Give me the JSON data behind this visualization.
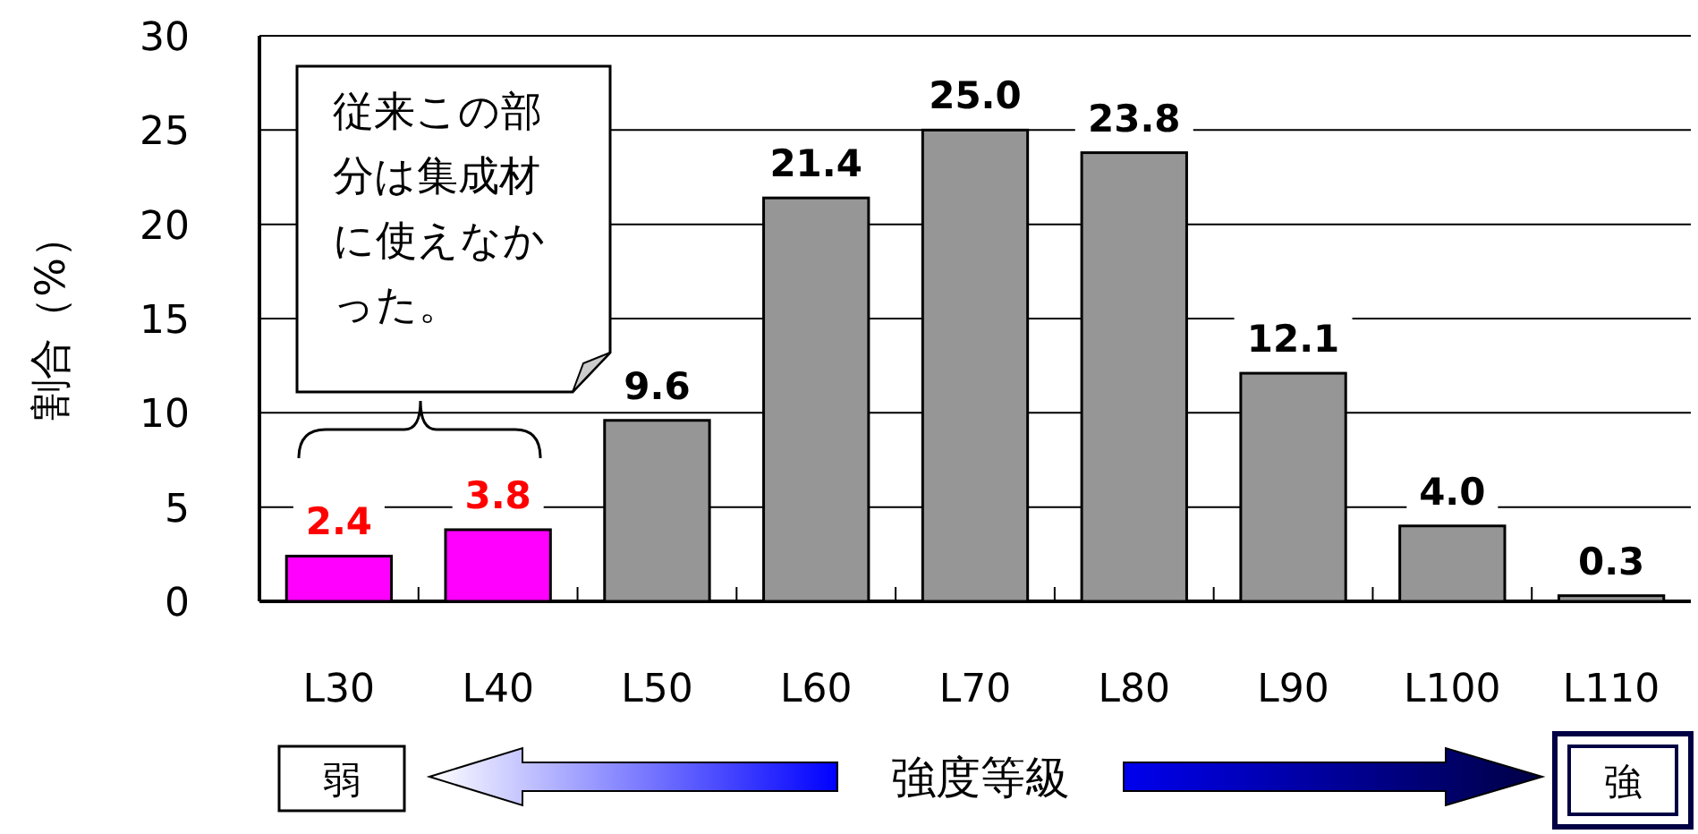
{
  "chart_data": {
    "type": "bar",
    "categories": [
      "L30",
      "L40",
      "L50",
      "L60",
      "L70",
      "L80",
      "L90",
      "L100",
      "L110"
    ],
    "values": [
      2.4,
      3.8,
      9.6,
      21.4,
      25.0,
      23.8,
      12.1,
      4.0,
      0.3
    ],
    "value_labels": [
      "2.4",
      "3.8",
      "9.6",
      "21.4",
      "25.0",
      "23.8",
      "12.1",
      "4.0",
      "0.3"
    ],
    "colors": [
      "#ff00ff",
      "#ff00ff",
      "#969696",
      "#969696",
      "#969696",
      "#969696",
      "#969696",
      "#969696",
      "#969696"
    ],
    "ylim": [
      0,
      30
    ],
    "yticks": [
      0,
      5,
      10,
      15,
      20,
      25,
      30
    ],
    "grid": "y",
    "ylabel": "割合（%）",
    "xlabel": "強度等級",
    "annotations": [
      "従来この部分は集成材に使えなかった。",
      "弱",
      "強"
    ]
  }
}
